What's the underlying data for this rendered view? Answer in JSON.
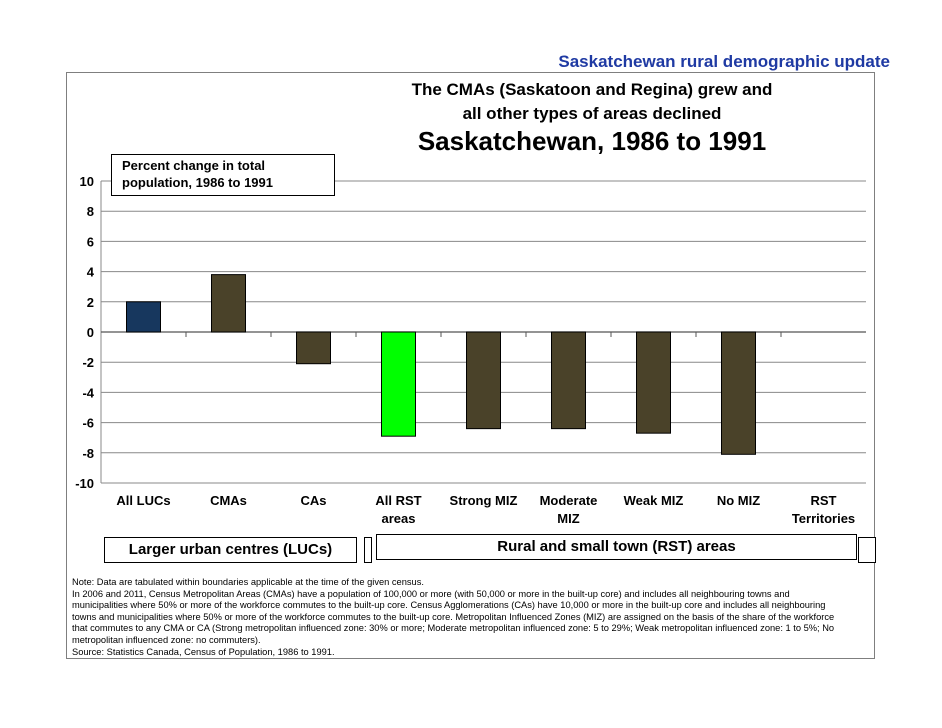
{
  "header_title": "Saskatchewan rural demographic update",
  "subtitle_line1": "The  CMAs (Saskatoon and Regina) grew and",
  "subtitle_line2": "all other types of areas declined",
  "main_title": "Saskatchewan, 1986 to 1991",
  "ylabel_line1": "Percent  change in  total",
  "ylabel_line2": "population, 1986 to 1991",
  "chart_data": {
    "type": "bar",
    "title": "Saskatchewan, 1986 to 1991",
    "ylabel": "Percent  change in  total population, 1986 to 1991",
    "ylim": [
      -10,
      10
    ],
    "yticks": [
      10,
      8,
      6,
      4,
      2,
      0,
      -2,
      -4,
      -6,
      -8,
      -10
    ],
    "grid": true,
    "categories": [
      [
        "All LUCs"
      ],
      [
        "CMAs"
      ],
      [
        "CAs"
      ],
      [
        "All RST",
        "areas"
      ],
      [
        "Strong MIZ"
      ],
      [
        "Moderate",
        "MIZ"
      ],
      [
        "Weak MIZ"
      ],
      [
        "No MIZ"
      ],
      [
        "RST",
        "Territories"
      ]
    ],
    "values": [
      2.0,
      3.8,
      -2.1,
      -6.9,
      -6.4,
      -6.4,
      -6.7,
      -8.1,
      null
    ],
    "colors": [
      "#17375e",
      "#4a4229",
      "#4a4229",
      "#00ff00",
      "#4a4229",
      "#4a4229",
      "#4a4229",
      "#4a4229",
      "#4a4229"
    ]
  },
  "groups": {
    "luc": "Larger urban centres (LUCs)",
    "rst": "Rural and small town (RST) areas"
  },
  "note_lines": [
    "Note: Data are tabulated within boundaries applicable at the time of the given census.",
    "       In 2006 and 2011, Census Metropolitan Areas (CMAs) have a population of 100,000 or more (with 50,000 or more in the built-up core) and includes all neighbouring towns and",
    "municipalities  where 50% or more of the workforce commutes to the built-up  core. Census Agglomerations (CAs) have 10,000 or more in the built-up core and includes all neighbouring",
    "towns and municipalities where 50% or more of the workforce commutes to the built-up core. Metropolitan Influenced Zones (MIZ) are assigned on the basis of the share of the workforce",
    "that commutes to any CMA or CA (Strong metropolitan influenced zone: 30% or more; Moderate metropolitan influenced zone: 5 to 29%; Weak metropolitan influenced zone: 1 to 5%; No",
    "metropolitan influenced zone: no commuters).",
    "Source: Statistics Canada, Census of Population, 1986 to 1991."
  ]
}
